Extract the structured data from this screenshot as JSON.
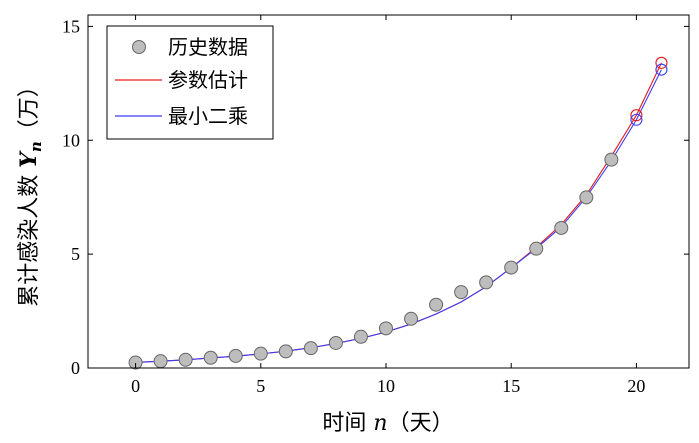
{
  "chart_data": {
    "type": "scatter",
    "xlabel": {
      "prefix": "时间 ",
      "var": "n",
      "suffix": "（天）"
    },
    "ylabel": {
      "prefix": "累计感染人数 ",
      "var": "Y",
      "sub": "n",
      "suffix": "（万）"
    },
    "xlim": [
      -1.9,
      22.1
    ],
    "ylim": [
      0,
      15.5
    ],
    "xticks": [
      0,
      5,
      10,
      15,
      20
    ],
    "yticks": [
      0,
      5,
      10,
      15
    ],
    "legend_position": "top-left",
    "series": [
      {
        "name": "历史数据",
        "style": "marker",
        "color": "#bdbdbd",
        "x": [
          0,
          1,
          2,
          3,
          4,
          5,
          6,
          7,
          8,
          9,
          10,
          11,
          12,
          13,
          14,
          15,
          16,
          17,
          18,
          19
        ],
        "y": [
          0.24,
          0.3,
          0.36,
          0.45,
          0.53,
          0.63,
          0.73,
          0.87,
          1.1,
          1.37,
          1.74,
          2.16,
          2.78,
          3.33,
          3.76,
          4.41,
          5.24,
          6.15,
          7.49,
          9.15
        ]
      },
      {
        "name": "参数估计",
        "style": "line",
        "color": "#e41a1c",
        "x": [
          0,
          1,
          2,
          3,
          4,
          5,
          6,
          7,
          8,
          9,
          10,
          11,
          12,
          13,
          14,
          15,
          16,
          17,
          18,
          19,
          20,
          21
        ],
        "y": [
          0.25,
          0.3,
          0.36,
          0.44,
          0.52,
          0.62,
          0.74,
          0.89,
          1.08,
          1.3,
          1.58,
          1.93,
          2.37,
          2.9,
          3.57,
          4.4,
          5.3,
          6.3,
          7.6,
          9.3,
          11.1,
          13.4
        ],
        "forecast_x": [
          20,
          21
        ],
        "forecast_y": [
          11.1,
          13.4
        ]
      },
      {
        "name": "最小二乘",
        "style": "line",
        "color": "#3d3df5",
        "x": [
          0,
          1,
          2,
          3,
          4,
          5,
          6,
          7,
          8,
          9,
          10,
          11,
          12,
          13,
          14,
          15,
          16,
          17,
          18,
          19,
          20,
          21
        ],
        "y": [
          0.24,
          0.3,
          0.36,
          0.44,
          0.52,
          0.62,
          0.74,
          0.89,
          1.08,
          1.3,
          1.58,
          1.93,
          2.37,
          2.9,
          3.57,
          4.4,
          5.25,
          6.2,
          7.5,
          9.1,
          10.9,
          13.1
        ],
        "forecast_x": [
          20,
          21
        ],
        "forecast_y": [
          10.9,
          13.1
        ]
      }
    ]
  }
}
